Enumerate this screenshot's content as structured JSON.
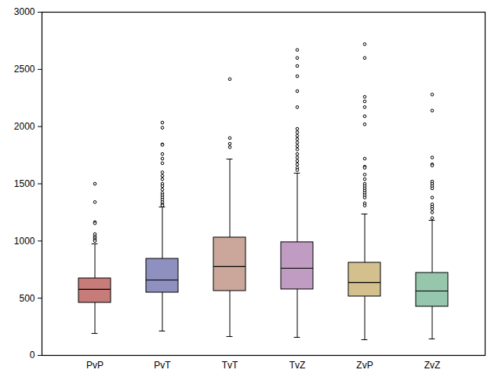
{
  "chart_data": {
    "type": "box",
    "categories": [
      "PvP",
      "PvT",
      "TvT",
      "TvZ",
      "ZvP",
      "ZvZ"
    ],
    "colors": [
      "#c87c7a",
      "#8e90bf",
      "#cba69b",
      "#c09cc3",
      "#d3c08c",
      "#96c7ad"
    ],
    "boxes": [
      {
        "whisker_low": 192,
        "q1": 460,
        "median": 577,
        "q3": 673,
        "whisker_high": 975,
        "outliers": [
          1500,
          1340,
          1165,
          1155,
          1060,
          1040,
          1025,
          1010,
          1000
        ]
      },
      {
        "whisker_low": 213,
        "q1": 549,
        "median": 659,
        "q3": 844,
        "whisker_high": 1297,
        "outliers": [
          2035,
          1990,
          1845,
          1840,
          1760,
          1720,
          1680,
          1600,
          1570,
          1540,
          1500,
          1480,
          1450,
          1420,
          1400,
          1380,
          1360,
          1340,
          1320,
          1310
        ]
      },
      {
        "whisker_low": 165,
        "q1": 563,
        "median": 776,
        "q3": 1030,
        "whisker_high": 1716,
        "outliers": [
          2415,
          1900,
          1850,
          1820
        ]
      },
      {
        "whisker_low": 158,
        "q1": 577,
        "median": 762,
        "q3": 989,
        "whisker_high": 1593,
        "outliers": [
          2670,
          2600,
          2530,
          2440,
          2310,
          2170,
          1980,
          1950,
          1920,
          1890,
          1860,
          1830,
          1800,
          1760,
          1730,
          1700,
          1670,
          1640,
          1620
        ]
      },
      {
        "whisker_low": 137,
        "q1": 515,
        "median": 638,
        "q3": 810,
        "whisker_high": 1236,
        "outliers": [
          2720,
          2600,
          2260,
          2220,
          2170,
          2090,
          2020,
          1720,
          1650,
          1640,
          1580,
          1540,
          1500,
          1480,
          1460,
          1440,
          1420,
          1400,
          1380,
          1330,
          1310
        ]
      },
      {
        "whisker_low": 144,
        "q1": 426,
        "median": 563,
        "q3": 721,
        "whisker_high": 1181,
        "outliers": [
          2280,
          2140,
          1730,
          1670,
          1660,
          1520,
          1500,
          1480,
          1460,
          1380,
          1320,
          1300,
          1280,
          1250,
          1200
        ]
      }
    ],
    "ylim": [
      0,
      3000
    ],
    "yticks": [
      0,
      500,
      1000,
      1500,
      2000,
      2500,
      3000
    ],
    "grid": false
  }
}
